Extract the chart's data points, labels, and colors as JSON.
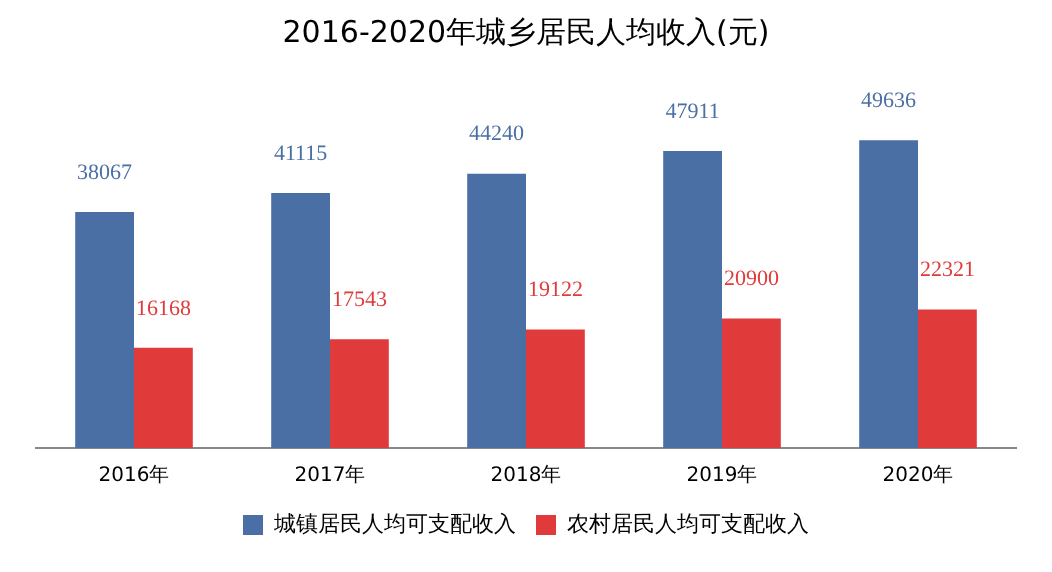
{
  "chart_data": {
    "type": "bar",
    "title": "2016-2020年城乡居民人均收入(元)",
    "categories": [
      "2016年",
      "2017年",
      "2018年",
      "2019年",
      "2020年"
    ],
    "series": [
      {
        "name": "城镇居民人均可支配收入",
        "color": "#4a6fa5",
        "values": [
          38067,
          41115,
          44240,
          47911,
          49636
        ]
      },
      {
        "name": "农村居民人均可支配收入",
        "color": "#e03a3a",
        "values": [
          16168,
          17543,
          19122,
          20900,
          22321
        ]
      }
    ],
    "data_labels": true,
    "grid": false,
    "legend": "bottom",
    "tick_labels": "x"
  }
}
